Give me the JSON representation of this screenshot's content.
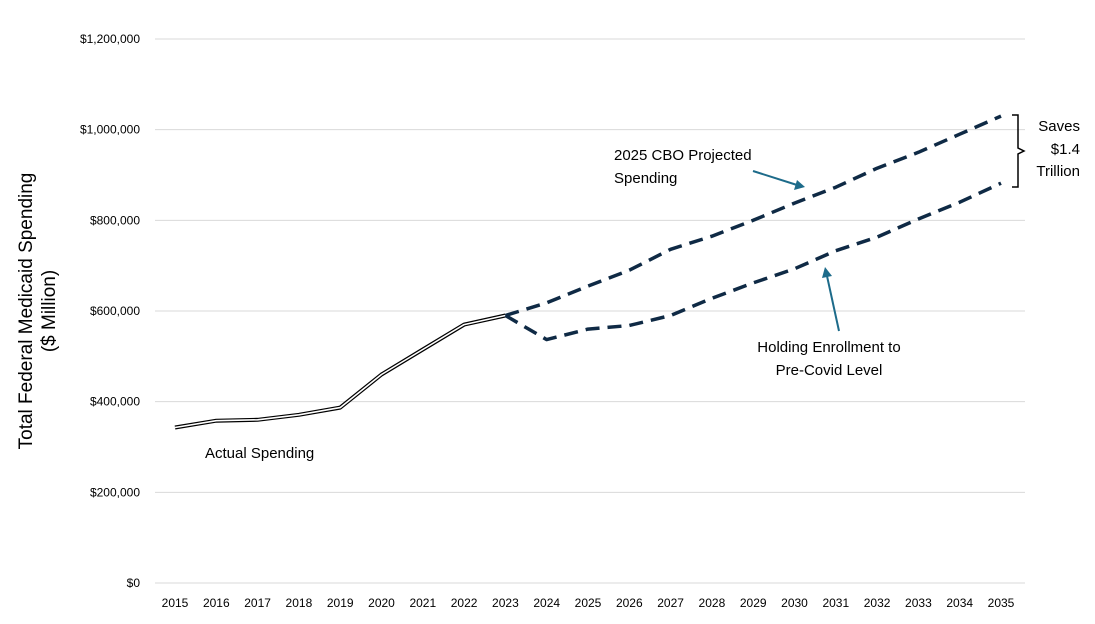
{
  "chart_data": {
    "type": "line",
    "title": "",
    "xlabel": "",
    "ylabel_line1": "Total Federal Medicaid Spending",
    "ylabel_line2": "($ Million)",
    "x": [
      "2015",
      "2016",
      "2017",
      "2018",
      "2019",
      "2020",
      "2021",
      "2022",
      "2023",
      "2024",
      "2025",
      "2026",
      "2027",
      "2028",
      "2029",
      "2030",
      "2031",
      "2032",
      "2033",
      "2034",
      "2035"
    ],
    "ylim": [
      0,
      1200000
    ],
    "yticks": [
      0,
      200000,
      400000,
      600000,
      800000,
      1000000,
      1200000
    ],
    "ytick_labels": [
      "$0",
      "$200,000",
      "$400,000",
      "$600,000",
      "$800,000",
      "$1,000,000",
      "$1,200,000"
    ],
    "grid": true,
    "series": [
      {
        "name": "Actual Spending",
        "style": "double-solid",
        "color": "#000000",
        "x": [
          "2015",
          "2016",
          "2017",
          "2018",
          "2019",
          "2020",
          "2021",
          "2022",
          "2023"
        ],
        "values": [
          343000,
          358000,
          360000,
          371000,
          387000,
          460000,
          515000,
          570000,
          590000
        ]
      },
      {
        "name": "2025 CBO Projected Spending",
        "style": "dashed",
        "color": "#0f2a45",
        "x": [
          "2023",
          "2024",
          "2025",
          "2026",
          "2027",
          "2028",
          "2029",
          "2030",
          "2031",
          "2032",
          "2033",
          "2034",
          "2035"
        ],
        "values": [
          590000,
          618000,
          655000,
          690000,
          736000,
          765000,
          800000,
          838000,
          873000,
          915000,
          950000,
          990000,
          1030000
        ]
      },
      {
        "name": "Holding Enrollment to Pre-Covid Level",
        "style": "dashed",
        "color": "#0f2a45",
        "x": [
          "2023",
          "2024",
          "2025",
          "2026",
          "2027",
          "2028",
          "2029",
          "2030",
          "2031",
          "2032",
          "2033",
          "2034",
          "2035"
        ],
        "values": [
          590000,
          537000,
          560000,
          568000,
          590000,
          628000,
          662000,
          693000,
          733000,
          763000,
          803000,
          840000,
          882000
        ]
      }
    ],
    "annotations": {
      "actual": "Actual Spending",
      "cbo_line1": "2025 CBO Projected",
      "cbo_line2": "Spending",
      "hold_line1": "Holding Enrollment to",
      "hold_line2": "Pre-Covid Level",
      "saves_line1": "Saves",
      "saves_line2": "$1.4",
      "saves_line3": "Trillion"
    },
    "arrow_color": "#1d6b8a"
  }
}
